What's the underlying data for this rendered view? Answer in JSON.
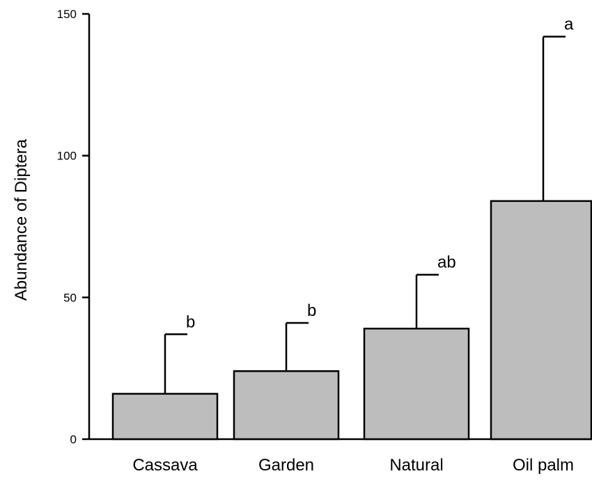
{
  "chart_data": {
    "type": "bar",
    "title": "",
    "xlabel": "",
    "ylabel": "Abundance of Diptera",
    "ylim": [
      0,
      150
    ],
    "yticks": [
      0,
      50,
      100,
      150
    ],
    "categories": [
      "Cassava",
      "Garden",
      "Natural",
      "Oil palm"
    ],
    "values": [
      16,
      24,
      39,
      84
    ],
    "error_upper": [
      37,
      41,
      58,
      142
    ],
    "significance_letters": [
      "b",
      "b",
      "ab",
      "a"
    ],
    "bar_color": "#bdbdbd",
    "grid": false,
    "legend": "none"
  }
}
